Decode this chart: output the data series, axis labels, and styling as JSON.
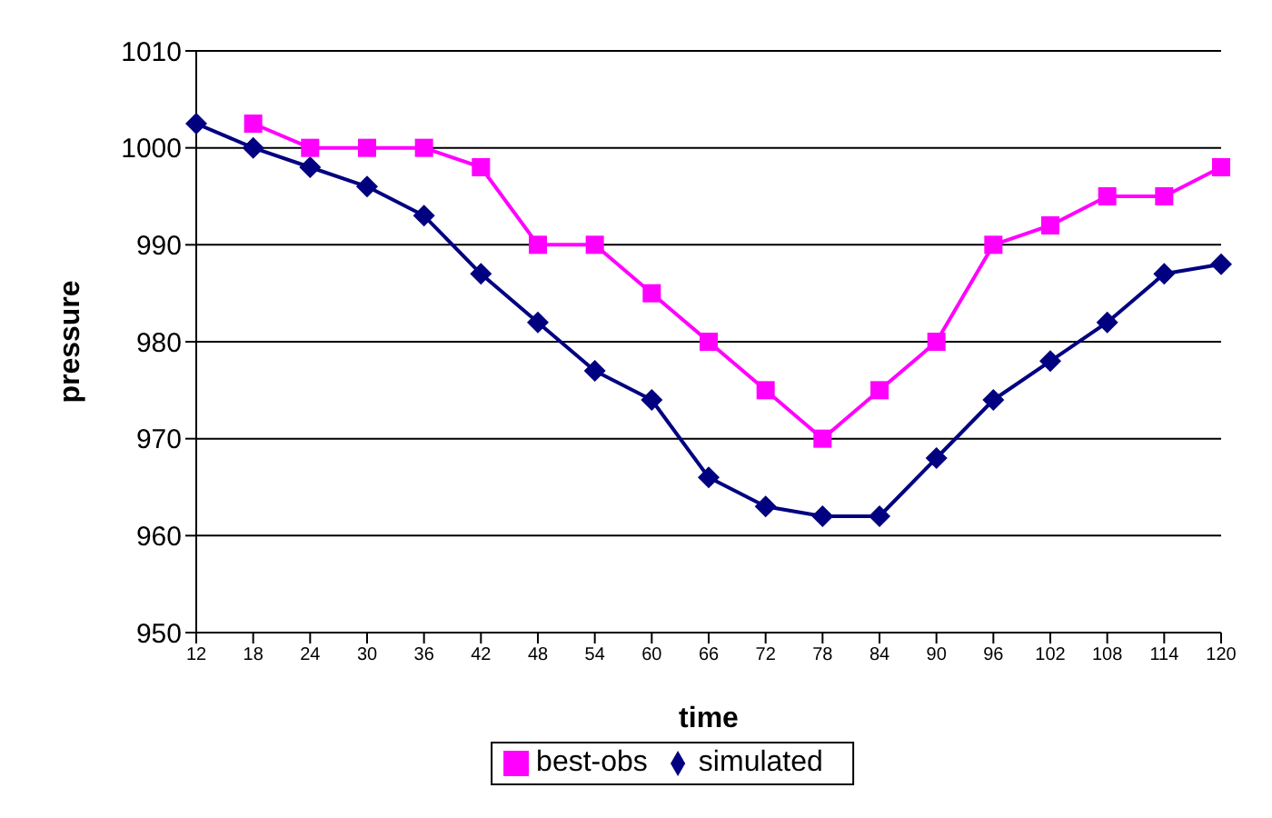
{
  "chart_data": {
    "type": "line",
    "xlabel": "time",
    "ylabel": "pressure",
    "categories": [
      "12",
      "18",
      "24",
      "30",
      "36",
      "42",
      "48",
      "54",
      "60",
      "66",
      "72",
      "78",
      "84",
      "90",
      "96",
      "102",
      "108",
      "114",
      "120"
    ],
    "series": [
      {
        "name": "simulated",
        "color": "#000080",
        "marker": "diamond",
        "values": [
          1002.5,
          1000,
          998,
          996,
          993,
          987,
          982,
          977,
          974,
          966,
          963,
          962,
          962,
          968,
          974,
          978,
          982,
          987,
          988
        ]
      },
      {
        "name": "best-obs",
        "color": "#ff00ff",
        "marker": "square",
        "values": [
          null,
          1002.5,
          1000,
          1000,
          1000,
          998,
          990,
          990,
          985,
          980,
          975,
          970,
          975,
          980,
          990,
          992,
          995,
          995,
          998
        ]
      }
    ],
    "ylim": [
      950,
      1010
    ],
    "yticks": [
      950,
      960,
      970,
      980,
      990,
      1000,
      1010
    ],
    "grid": "y",
    "legend": "bottom"
  }
}
